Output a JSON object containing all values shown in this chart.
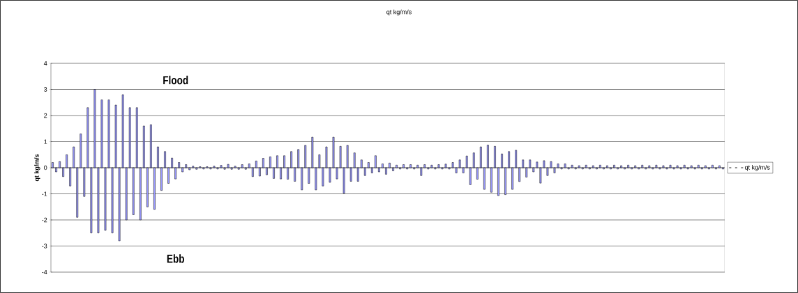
{
  "chart_data": {
    "type": "bar",
    "title": "qt kg/m/s",
    "ylabel": "qt kg/m/s",
    "annotations": [
      "Flood",
      "Ebb"
    ],
    "categories": [
      null,
      null,
      null,
      null,
      null,
      null,
      null,
      null,
      null,
      null,
      null,
      null,
      null,
      null,
      null,
      null,
      null,
      null,
      null,
      null,
      null,
      null,
      null,
      null,
      null,
      null,
      null,
      null,
      null,
      null,
      null,
      null,
      null,
      null,
      null,
      null,
      null,
      null,
      null,
      null,
      null,
      null,
      null,
      null,
      null,
      null,
      null,
      null,
      null,
      null,
      null,
      null,
      null,
      null,
      null,
      null,
      null,
      null,
      null,
      null,
      null,
      null,
      null,
      null,
      null,
      null,
      null,
      null,
      null,
      null,
      null,
      null,
      null,
      null,
      null,
      null,
      null,
      null,
      null,
      null,
      null,
      null,
      null,
      null,
      null,
      null,
      null,
      null,
      null,
      null,
      null,
      null,
      null,
      null,
      null,
      null,
      null,
      null,
      null,
      null,
      null,
      null,
      null,
      null,
      null,
      null,
      null,
      null,
      null,
      null,
      null,
      null,
      null,
      null,
      null,
      null,
      null,
      null,
      null,
      null,
      null,
      null,
      null,
      null,
      null,
      null,
      null,
      null,
      null,
      null,
      null,
      null,
      null,
      null,
      null,
      null,
      null,
      null,
      null,
      null,
      null,
      null,
      null,
      null,
      null,
      null,
      null,
      null,
      null,
      null,
      null,
      null,
      null,
      null,
      null,
      null,
      null,
      null,
      null,
      null,
      null,
      null,
      null,
      null,
      null,
      null,
      null,
      null,
      null,
      null,
      null,
      null,
      null,
      null,
      null,
      null,
      null,
      null,
      null,
      null,
      null,
      null,
      null,
      null,
      null,
      null,
      null,
      null,
      null,
      null,
      null,
      null
    ],
    "series": [
      {
        "name": "qt kg/m/s",
        "color": "#9999ff",
        "values": [
          0.2,
          -0.16,
          0.24,
          -0.34,
          0.5,
          -0.7,
          0.8,
          -1.9,
          1.3,
          -1.1,
          2.3,
          -2.5,
          3.0,
          -2.5,
          2.6,
          -2.4,
          2.6,
          -2.5,
          2.4,
          -2.8,
          2.8,
          -2.0,
          2.3,
          -1.8,
          2.3,
          -2.0,
          1.6,
          -1.5,
          1.65,
          -1.6,
          0.8,
          -0.87,
          0.62,
          -0.6,
          0.37,
          -0.43,
          0.2,
          -0.16,
          0.12,
          -0.08,
          0.06,
          -0.06,
          0.04,
          -0.05,
          0.04,
          -0.05,
          0.06,
          -0.05,
          0.09,
          -0.06,
          0.13,
          -0.06,
          0.06,
          -0.06,
          0.12,
          -0.06,
          0.15,
          -0.34,
          0.26,
          -0.32,
          0.36,
          -0.27,
          0.42,
          -0.41,
          0.46,
          -0.43,
          0.46,
          -0.44,
          0.62,
          -0.52,
          0.7,
          -0.85,
          0.86,
          -0.6,
          1.17,
          -0.85,
          0.5,
          -0.7,
          0.8,
          -0.56,
          1.17,
          -0.43,
          0.82,
          -0.98,
          0.86,
          -0.52,
          0.57,
          -0.52,
          0.3,
          -0.3,
          0.2,
          -0.2,
          0.46,
          -0.16,
          0.15,
          -0.25,
          0.18,
          -0.12,
          0.1,
          -0.05,
          0.12,
          -0.05,
          0.12,
          -0.05,
          0.1,
          -0.3,
          0.12,
          -0.05,
          0.1,
          -0.05,
          0.12,
          -0.05,
          0.14,
          -0.05,
          0.2,
          -0.2,
          0.3,
          -0.2,
          0.45,
          -0.65,
          0.57,
          -0.44,
          0.8,
          -0.83,
          0.87,
          -0.94,
          0.82,
          -1.07,
          0.53,
          -1.03,
          0.62,
          -0.83,
          0.67,
          -0.53,
          0.3,
          -0.36,
          0.3,
          -0.16,
          0.22,
          -0.59,
          0.27,
          -0.3,
          0.24,
          -0.2,
          0.15,
          -0.05,
          0.15,
          -0.05,
          0.1,
          -0.05,
          0.08,
          -0.05,
          0.1,
          -0.05,
          0.08,
          -0.05,
          0.1,
          -0.05,
          0.08,
          -0.05,
          0.1,
          -0.05,
          0.08,
          -0.05,
          0.1,
          -0.05,
          0.08,
          -0.05,
          0.1,
          -0.05,
          0.08,
          -0.05,
          0.1,
          -0.05,
          0.08,
          -0.05,
          0.1,
          -0.05,
          0.08,
          -0.05,
          0.1,
          -0.05,
          0.08,
          -0.05,
          0.1,
          -0.05,
          0.08,
          -0.05,
          0.1,
          -0.05,
          0.08,
          -0.05
        ]
      }
    ],
    "ylim": [
      -4,
      4
    ],
    "yticks": [
      -4,
      -3,
      -2,
      -1,
      0,
      1,
      2,
      3,
      4
    ],
    "grid": "y",
    "legend": "right"
  }
}
